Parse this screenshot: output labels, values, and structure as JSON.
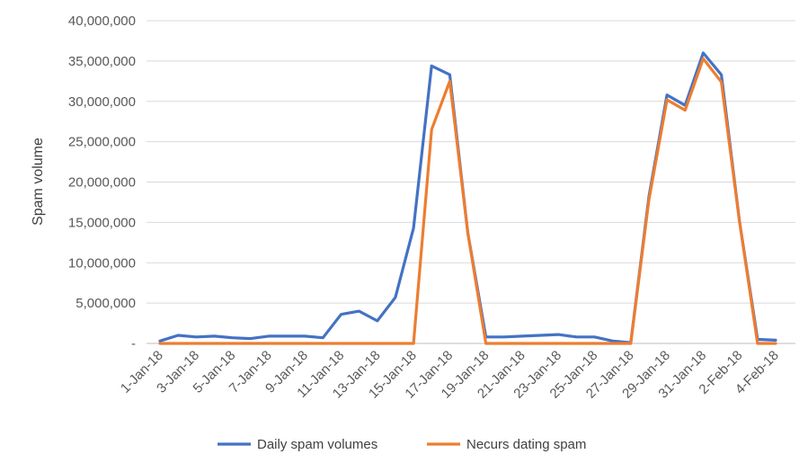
{
  "chart_data": {
    "type": "line",
    "title": "",
    "xlabel": "",
    "ylabel": "Spam volume",
    "ylim": [
      0,
      40000000
    ],
    "yticks": [
      "-",
      "5,000,000",
      "10,000,000",
      "15,000,000",
      "20,000,000",
      "25,000,000",
      "30,000,000",
      "35,000,000",
      "40,000,000"
    ],
    "grid": true,
    "legend": "bottom",
    "x_tick_labels": [
      "1-Jan-18",
      "3-Jan-18",
      "5-Jan-18",
      "7-Jan-18",
      "9-Jan-18",
      "11-Jan-18",
      "13-Jan-18",
      "15-Jan-18",
      "17-Jan-18",
      "19-Jan-18",
      "21-Jan-18",
      "23-Jan-18",
      "25-Jan-18",
      "27-Jan-18",
      "29-Jan-18",
      "31-Jan-18",
      "2-Feb-18",
      "4-Feb-18"
    ],
    "categories": [
      "2018-01-01",
      "2018-01-02",
      "2018-01-03",
      "2018-01-04",
      "2018-01-05",
      "2018-01-06",
      "2018-01-07",
      "2018-01-08",
      "2018-01-09",
      "2018-01-10",
      "2018-01-11",
      "2018-01-12",
      "2018-01-13",
      "2018-01-14",
      "2018-01-15",
      "2018-01-16",
      "2018-01-17",
      "2018-01-18",
      "2018-01-19",
      "2018-01-20",
      "2018-01-21",
      "2018-01-22",
      "2018-01-23",
      "2018-01-24",
      "2018-01-25",
      "2018-01-26",
      "2018-01-27",
      "2018-01-28",
      "2018-01-29",
      "2018-01-30",
      "2018-01-31",
      "2018-02-01",
      "2018-02-02",
      "2018-02-03",
      "2018-02-04"
    ],
    "series": [
      {
        "name": "Daily spam volumes",
        "color": "#4472C4",
        "values": [
          300000,
          1000000,
          800000,
          900000,
          700000,
          600000,
          900000,
          900000,
          900000,
          700000,
          3600000,
          4000000,
          2800000,
          5700000,
          14300000,
          34400000,
          33300000,
          13700000,
          800000,
          800000,
          900000,
          1000000,
          1100000,
          800000,
          800000,
          300000,
          100000,
          18200000,
          30800000,
          29500000,
          36000000,
          33300000,
          15200000,
          500000,
          400000
        ]
      },
      {
        "name": "Necurs dating spam",
        "color": "#ED7D31",
        "values": [
          0,
          0,
          0,
          0,
          0,
          0,
          0,
          0,
          0,
          0,
          0,
          0,
          0,
          0,
          0,
          26500000,
          32500000,
          13700000,
          0,
          0,
          0,
          0,
          0,
          0,
          0,
          0,
          0,
          17800000,
          30200000,
          28900000,
          35300000,
          32400000,
          15200000,
          0,
          0
        ]
      }
    ]
  }
}
